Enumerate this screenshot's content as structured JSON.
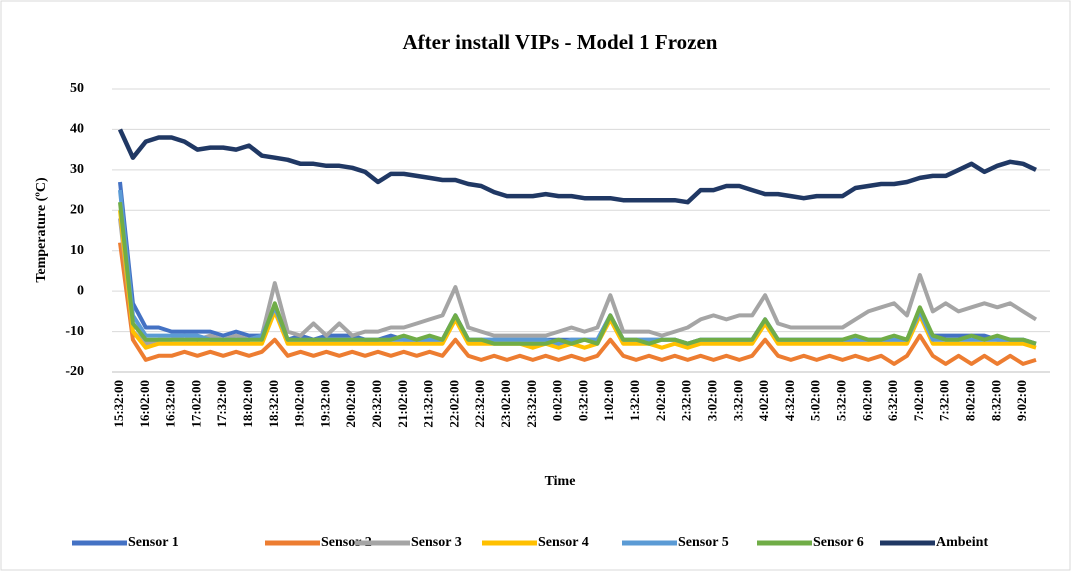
{
  "chart_data": {
    "type": "line",
    "title": "After install VIPs - Model 1 Frozen",
    "x_label": "Time",
    "y_label": "Temperature (ºC)",
    "categories": [
      "15:32:00",
      null,
      "16:02:00",
      null,
      "16:32:00",
      null,
      "17:02:00",
      null,
      "17:32:00",
      null,
      "18:02:00",
      null,
      "18:32:00",
      null,
      "19:02:00",
      null,
      "19:32:00",
      null,
      "20:02:00",
      null,
      "20:32:00",
      null,
      "21:02:00",
      null,
      "21:32:00",
      null,
      "22:02:00",
      null,
      "22:32:00",
      null,
      "23:02:00",
      null,
      "23:32:00",
      null,
      "0:02:00",
      null,
      "0:32:00",
      null,
      "1:02:00",
      null,
      "1:32:00",
      null,
      "2:02:00",
      null,
      "2:32:00",
      null,
      "3:02:00",
      null,
      "3:32:00",
      null,
      "4:02:00",
      null,
      "4:32:00",
      null,
      "5:02:00",
      null,
      "5:32:00",
      null,
      "6:02:00",
      null,
      "6:32:00",
      null,
      "7:02:00",
      null,
      "7:32:00",
      null,
      "8:02:00",
      null,
      "8:32:00",
      null,
      "9:02:00",
      null
    ],
    "series": [
      {
        "name": "Sensor 1",
        "color": "#4472c4",
        "values": [
          27,
          -3,
          -9,
          -9,
          -10,
          -10,
          -10,
          -10,
          -11,
          -10,
          -11,
          -11,
          -4,
          -12,
          -11,
          -12,
          -11,
          -11,
          -11,
          -12,
          -12,
          -11,
          -12,
          -12,
          -12,
          -12,
          -6,
          -12,
          -12,
          -12,
          -12,
          -12,
          -12,
          -12,
          -12,
          -12,
          -12,
          -12,
          -6,
          -12,
          -12,
          -12,
          -12,
          -12,
          -13,
          -12,
          -12,
          -12,
          -12,
          -12,
          -7,
          -12,
          -12,
          -12,
          -12,
          -12,
          -12,
          -12,
          -12,
          -12,
          -12,
          -12,
          -5,
          -11,
          -11,
          -11,
          -11,
          -11,
          -12,
          -12,
          -12,
          -13
        ]
      },
      {
        "name": "Sensor 2",
        "color": "#ed7d31",
        "values": [
          12,
          -12,
          -17,
          -16,
          -16,
          -15,
          -16,
          -15,
          -16,
          -15,
          -16,
          -15,
          -12,
          -16,
          -15,
          -16,
          -15,
          -16,
          -15,
          -16,
          -15,
          -16,
          -15,
          -16,
          -15,
          -16,
          -12,
          -16,
          -17,
          -16,
          -17,
          -16,
          -17,
          -16,
          -17,
          -16,
          -17,
          -16,
          -12,
          -16,
          -17,
          -16,
          -17,
          -16,
          -17,
          -16,
          -17,
          -16,
          -17,
          -16,
          -12,
          -16,
          -17,
          -16,
          -17,
          -16,
          -17,
          -16,
          -17,
          -16,
          -18,
          -16,
          -11,
          -16,
          -18,
          -16,
          -18,
          -16,
          -18,
          -16,
          -18,
          -17
        ]
      },
      {
        "name": "Sensor 3",
        "color": "#a5a5a5",
        "values": [
          18,
          -10,
          -13,
          -12,
          -12,
          -11,
          -12,
          -11,
          -12,
          -11,
          -12,
          -11,
          2,
          -10,
          -11,
          -8,
          -11,
          -8,
          -11,
          -10,
          -10,
          -9,
          -9,
          -8,
          -7,
          -6,
          1,
          -9,
          -10,
          -11,
          -11,
          -11,
          -11,
          -11,
          -10,
          -9,
          -10,
          -9,
          -1,
          -10,
          -10,
          -10,
          -11,
          -10,
          -9,
          -7,
          -6,
          -7,
          -6,
          -6,
          -1,
          -8,
          -9,
          -9,
          -9,
          -9,
          -9,
          -7,
          -5,
          -4,
          -3,
          -6,
          4,
          -5,
          -3,
          -5,
          -4,
          -3,
          -4,
          -3,
          -5,
          -7
        ]
      },
      {
        "name": "Sensor 4",
        "color": "#ffc000",
        "values": [
          20,
          -10,
          -14,
          -13,
          -13,
          -13,
          -13,
          -13,
          -13,
          -13,
          -13,
          -13,
          -5,
          -13,
          -13,
          -13,
          -13,
          -13,
          -13,
          -13,
          -13,
          -13,
          -13,
          -13,
          -13,
          -13,
          -7,
          -13,
          -13,
          -13,
          -13,
          -13,
          -14,
          -13,
          -14,
          -13,
          -14,
          -13,
          -7,
          -13,
          -13,
          -13,
          -14,
          -13,
          -14,
          -13,
          -13,
          -13,
          -13,
          -13,
          -8,
          -13,
          -13,
          -13,
          -13,
          -13,
          -13,
          -13,
          -13,
          -13,
          -13,
          -13,
          -6,
          -13,
          -13,
          -13,
          -13,
          -13,
          -13,
          -13,
          -13,
          -14
        ]
      },
      {
        "name": "Sensor 5",
        "color": "#5b9bd5",
        "values": [
          25,
          -6,
          -11,
          -11,
          -11,
          -11,
          -11,
          -12,
          -12,
          -12,
          -12,
          -11,
          -4,
          -12,
          -12,
          -12,
          -12,
          -12,
          -12,
          -12,
          -12,
          -12,
          -12,
          -12,
          -12,
          -12,
          -6,
          -12,
          -12,
          -12,
          -12,
          -12,
          -12,
          -12,
          -13,
          -12,
          -12,
          -12,
          -6,
          -12,
          -12,
          -12,
          -12,
          -12,
          -13,
          -12,
          -12,
          -12,
          -12,
          -12,
          -7,
          -12,
          -12,
          -12,
          -12,
          -12,
          -12,
          -12,
          -12,
          -12,
          -12,
          -12,
          -5,
          -12,
          -12,
          -12,
          -12,
          -12,
          -12,
          -12,
          -12,
          -13
        ]
      },
      {
        "name": "Sensor 6",
        "color": "#70ad47",
        "values": [
          22,
          -8,
          -12,
          -12,
          -12,
          -12,
          -12,
          -12,
          -12,
          -12,
          -12,
          -12,
          -3,
          -12,
          -12,
          -12,
          -12,
          -12,
          -12,
          -12,
          -12,
          -12,
          -11,
          -12,
          -11,
          -12,
          -6,
          -12,
          -12,
          -13,
          -13,
          -13,
          -13,
          -13,
          -12,
          -13,
          -12,
          -13,
          -6,
          -12,
          -12,
          -13,
          -12,
          -12,
          -13,
          -12,
          -12,
          -12,
          -12,
          -12,
          -7,
          -12,
          -12,
          -12,
          -12,
          -12,
          -12,
          -11,
          -12,
          -12,
          -11,
          -12,
          -4,
          -11,
          -12,
          -12,
          -11,
          -12,
          -11,
          -12,
          -12,
          -13
        ]
      },
      {
        "name": "Ambeint",
        "color": "#203864",
        "values": [
          40,
          33,
          37,
          38,
          38,
          37,
          35,
          35.5,
          35.5,
          35,
          36,
          33.5,
          33,
          32.5,
          31.5,
          31.5,
          31,
          31,
          30.5,
          29.5,
          27,
          29,
          29,
          28.5,
          28,
          27.5,
          27.5,
          26.5,
          26,
          24.5,
          23.5,
          23.5,
          23.5,
          24,
          23.5,
          23.5,
          23,
          23,
          23,
          22.5,
          22.5,
          22.5,
          22.5,
          22.5,
          22,
          25,
          25,
          26,
          26,
          25,
          24,
          24,
          23.5,
          23,
          23.5,
          23.5,
          23.5,
          25.5,
          26,
          26.5,
          26.5,
          27,
          28,
          28.5,
          28.5,
          30,
          31.5,
          29.5,
          31,
          32,
          31.5,
          30
        ]
      }
    ],
    "ylim": [
      -20,
      50
    ],
    "yticks": [
      -20,
      -10,
      0,
      10,
      20,
      30,
      40,
      50
    ],
    "grid": true,
    "legend": "bottom"
  }
}
